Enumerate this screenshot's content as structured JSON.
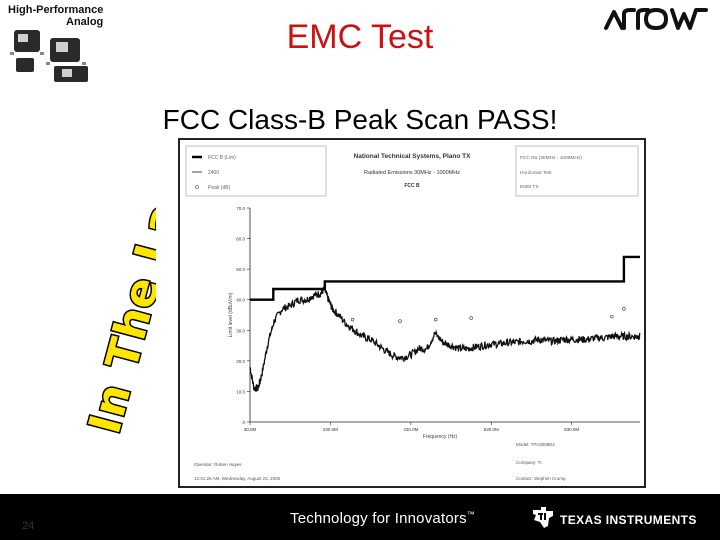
{
  "slide": {
    "title": "EMC Test",
    "subtitle": "FCC Class-B Peak Scan PASS!",
    "brand_line1": "High-Performance",
    "brand_line2": "Analog",
    "side_text": "In The Lab",
    "page_number": "24",
    "footer_tagline": "Technology for Innovators",
    "footer_tm": "™",
    "ti_name": "Texas Instruments",
    "colors": {
      "title": "#cc1111",
      "footer_bg": "#000000"
    },
    "icons": [
      "ti-chip-icon",
      "arrow-logo-icon",
      "ti-logo-icon"
    ]
  },
  "chart_data": {
    "type": "line",
    "header": {
      "title": "National Technical Systems, Plano TX",
      "line2": "Radiated Emissions 30MHz - 1000MHz",
      "line3": "FCC B"
    },
    "legend": [
      {
        "label": "FCC B (Lim)",
        "style": "solid-thick"
      },
      {
        "label": "2400",
        "style": "solid-thin"
      },
      {
        "label": "Peak (dB)",
        "style": "marker"
      }
    ],
    "info_right": [
      "FCC Ra (30MHz - 1000MHz)",
      "Horizontal Test",
      "EMM TX"
    ],
    "xlabel": "Frequency (Hz)",
    "ylabel": "Limit level (dBuV/m)",
    "x_ticks": [
      {
        "value": 30,
        "label": "30.0M"
      },
      {
        "value": 230,
        "label": "230.0M"
      },
      {
        "value": 430,
        "label": "430.0M"
      },
      {
        "value": 630,
        "label": "630.0M"
      },
      {
        "value": 830,
        "label": "830.0M"
      }
    ],
    "y_ticks": [
      {
        "value": 0,
        "label": "0"
      },
      {
        "value": 10,
        "label": "10.0"
      },
      {
        "value": 20,
        "label": "20.0"
      },
      {
        "value": 30,
        "label": "30.0"
      },
      {
        "value": 40,
        "label": "40.0"
      },
      {
        "value": 50,
        "label": "50.0"
      },
      {
        "value": 60,
        "label": "60.0"
      },
      {
        "value": 70,
        "label": "70.0"
      }
    ],
    "xlim": [
      30,
      1000
    ],
    "ylim": [
      0,
      70
    ],
    "series": [
      {
        "name": "FCC B (Lim)",
        "style": "step",
        "x": [
          30,
          88,
          88,
          216,
          216,
          960,
          960,
          1000
        ],
        "y": [
          40.0,
          40.0,
          43.5,
          43.5,
          46.0,
          46.0,
          54.0,
          54.0
        ]
      },
      {
        "name": "2400",
        "style": "noisy",
        "x": [
          30,
          40,
          50,
          60,
          75,
          90,
          110,
          130,
          150,
          170,
          190,
          205,
          215,
          225,
          235,
          250,
          270,
          290,
          310,
          330,
          350,
          370,
          390,
          410,
          430,
          450,
          470,
          490,
          510,
          530,
          550,
          570,
          590,
          610,
          630,
          650,
          670,
          690,
          710,
          730,
          750,
          770,
          790,
          810,
          830,
          850,
          870,
          890,
          910,
          930,
          950,
          970,
          990,
          1000
        ],
        "y": [
          18,
          11,
          11,
          16,
          26,
          33,
          37,
          38,
          40,
          40,
          41.5,
          42,
          43.5,
          40,
          37,
          35,
          32,
          30,
          28,
          27,
          25,
          23,
          21.5,
          21,
          22,
          24,
          24,
          29,
          26,
          25,
          24,
          24,
          24.5,
          25,
          25.5,
          25.5,
          26,
          26,
          26.5,
          26.5,
          27,
          26.5,
          26.5,
          27,
          27,
          27,
          27,
          27.5,
          27.5,
          28,
          28,
          28,
          28,
          28
        ]
      }
    ],
    "peaks": [
      {
        "x": 285,
        "y": 33.5
      },
      {
        "x": 403,
        "y": 33
      },
      {
        "x": 492,
        "y": 33.5
      },
      {
        "x": 580,
        "y": 34
      },
      {
        "x": 930,
        "y": 34.5
      },
      {
        "x": 960,
        "y": 37
      }
    ],
    "footer": {
      "operator": "Operator: Ruben Hayes",
      "timestamp": "12:41:26 AM, Wednesday, August 23, 2006",
      "model": "Model: TPA3008D2",
      "company": "Company: TI",
      "contact": "Contact: Stephen Crump"
    },
    "grid": false
  }
}
